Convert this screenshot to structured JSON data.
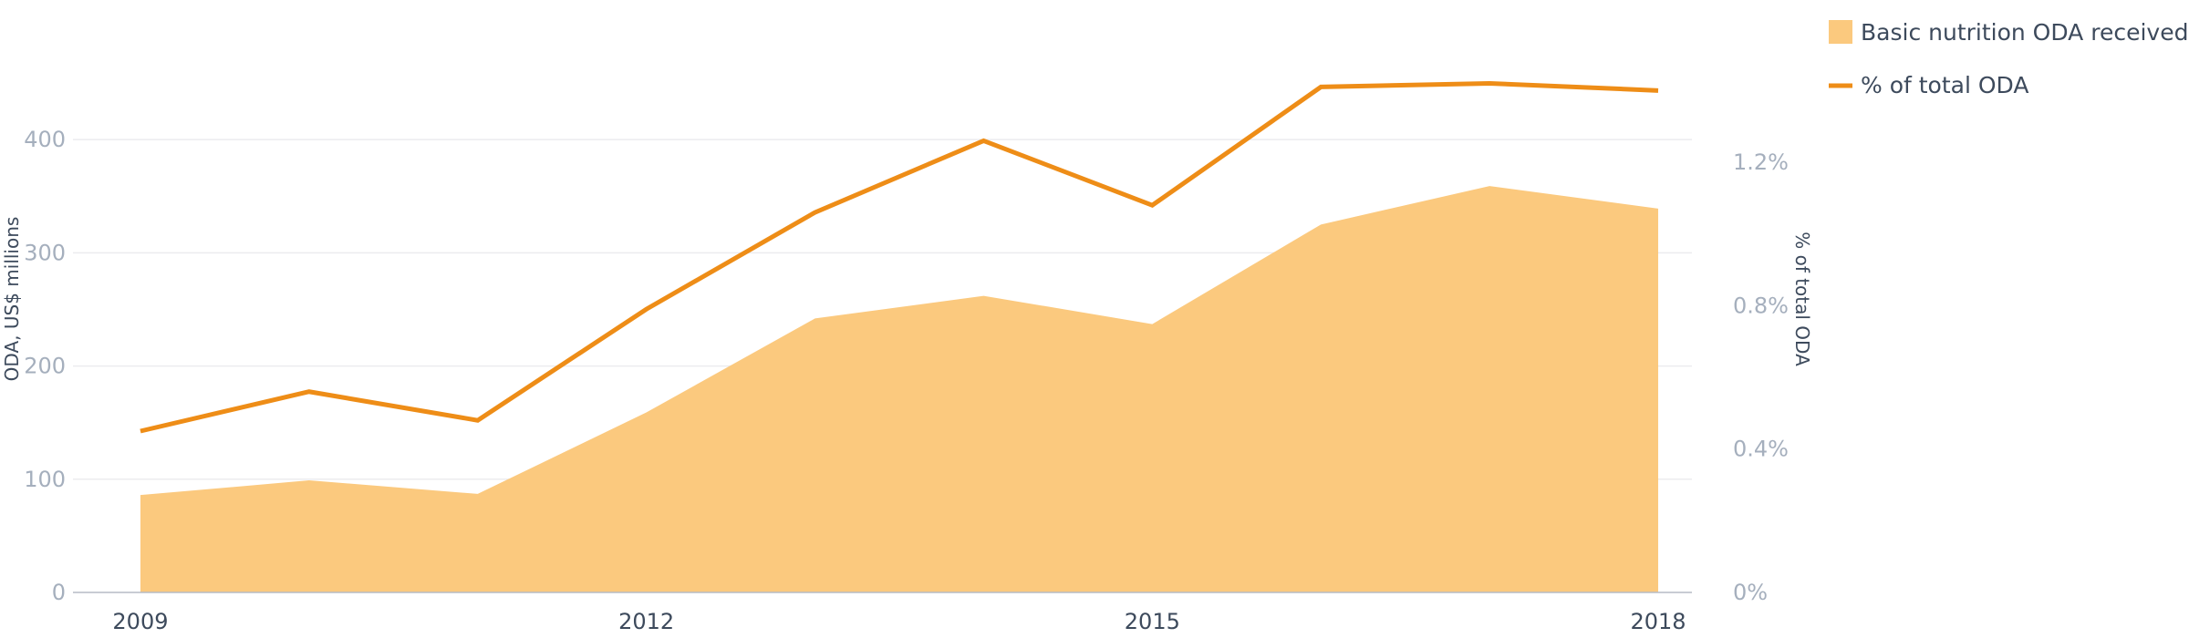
{
  "chart_data": {
    "type": "area",
    "x": [
      2009,
      2010,
      2011,
      2012,
      2013,
      2014,
      2015,
      2016,
      2017,
      2018
    ],
    "x_tick_labels": [
      "2009",
      "2012",
      "2015",
      "2018"
    ],
    "series": [
      {
        "name": "Basic nutrition ODA received",
        "type": "area",
        "axis": "left",
        "color": "#fbc97e",
        "values": [
          86,
          99,
          87,
          159,
          242,
          262,
          237,
          325,
          359,
          339
        ]
      },
      {
        "name": "% of total ODA",
        "type": "line",
        "axis": "right",
        "color": "#ee8d17",
        "values": [
          0.45,
          0.56,
          0.48,
          0.79,
          1.06,
          1.26,
          1.08,
          1.41,
          1.42,
          1.4
        ]
      }
    ],
    "y_left": {
      "label": "ODA, US$ millions",
      "range": [
        0,
        475
      ],
      "ticks": [
        0,
        100,
        200,
        300,
        400
      ],
      "tick_labels": [
        "0",
        "100",
        "200",
        "300",
        "400"
      ]
    },
    "y_right": {
      "label": "% of total ODA",
      "range": [
        0,
        1.5
      ],
      "ticks": [
        0,
        0.4,
        0.8,
        1.2
      ],
      "tick_labels": [
        "0%",
        "0.4%",
        "0.8%",
        "1.2%"
      ]
    },
    "xlim": [
      2008.6,
      2018.2
    ],
    "grid": true,
    "legend_position": "top-right"
  }
}
